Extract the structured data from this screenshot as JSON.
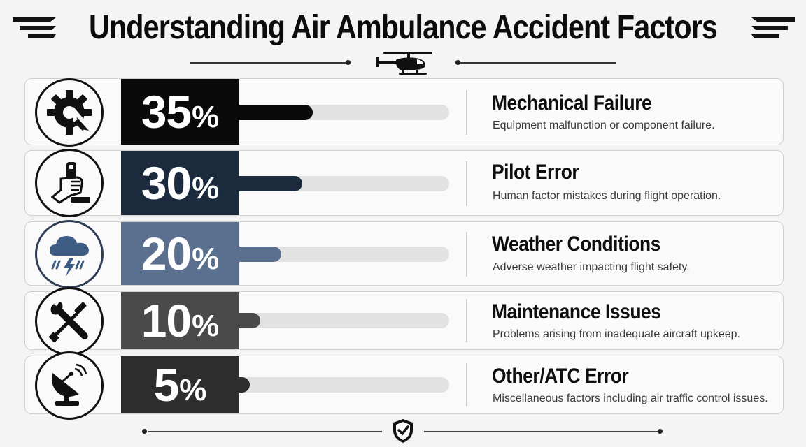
{
  "title": "Understanding Air Ambulance Accident Factors",
  "colors": {
    "row1": "#0a0a0a",
    "row2": "#1b2b3d",
    "row3": "#5b6f8f",
    "row4": "#4a4a4a",
    "row5": "#2d2d2d"
  },
  "rows": [
    {
      "icon": "gear-broken-icon",
      "title": "Mechanical Failure",
      "desc": "Equipment malfunction or component failure.",
      "pct": "35",
      "pct_symbol": "%"
    },
    {
      "icon": "hand-pilot-icon",
      "title": "Pilot Error",
      "desc": "Human factor mistakes during flight operation.",
      "pct": "30",
      "pct_symbol": "%"
    },
    {
      "icon": "storm-cloud-icon",
      "title": "Weather Conditions",
      "desc": "Adverse weather impacting flight safety.",
      "pct": "20",
      "pct_symbol": "%"
    },
    {
      "icon": "wrench-screwdriver-icon",
      "title": "Maintenance Issues",
      "desc": "Problems arising from inadequate aircraft upkeep.",
      "pct": "10",
      "pct_symbol": "%"
    },
    {
      "icon": "satellite-dish-icon",
      "title": "Other/ATC Error",
      "desc": "Miscellaneous factors including air traffic control issues.",
      "pct": "5",
      "pct_symbol": "%"
    }
  ],
  "chart_data": {
    "type": "bar",
    "title": "Understanding Air Ambulance Accident Factors",
    "categories": [
      "Mechanical Failure",
      "Pilot Error",
      "Weather Conditions",
      "Maintenance Issues",
      "Other/ATC Error"
    ],
    "values": [
      35,
      30,
      20,
      10,
      5
    ],
    "unit": "%",
    "xlim": [
      0,
      100
    ],
    "grid": false
  }
}
